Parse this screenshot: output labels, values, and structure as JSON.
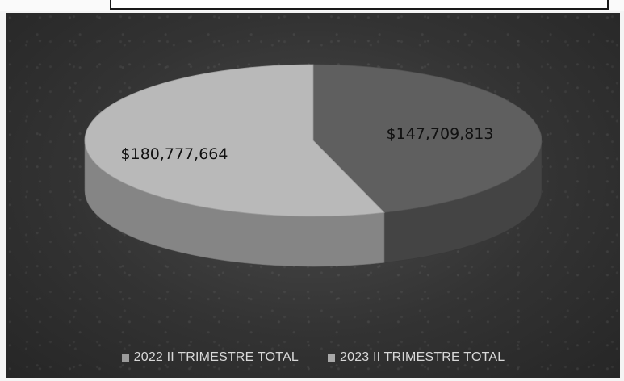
{
  "chart_data": {
    "type": "pie",
    "style": "3d",
    "title": "",
    "series": [
      {
        "name": "2022 II TRIMESTRE TOTAL",
        "value": 180777664,
        "label": "$180,777,664",
        "color": "#b9b9b9"
      },
      {
        "name": "2023 II TRIMESTRE TOTAL",
        "value": 147709813,
        "label": "$147,709,813",
        "color": "#5f5f5f"
      }
    ],
    "legend_position": "bottom",
    "background_color": "#333333"
  }
}
